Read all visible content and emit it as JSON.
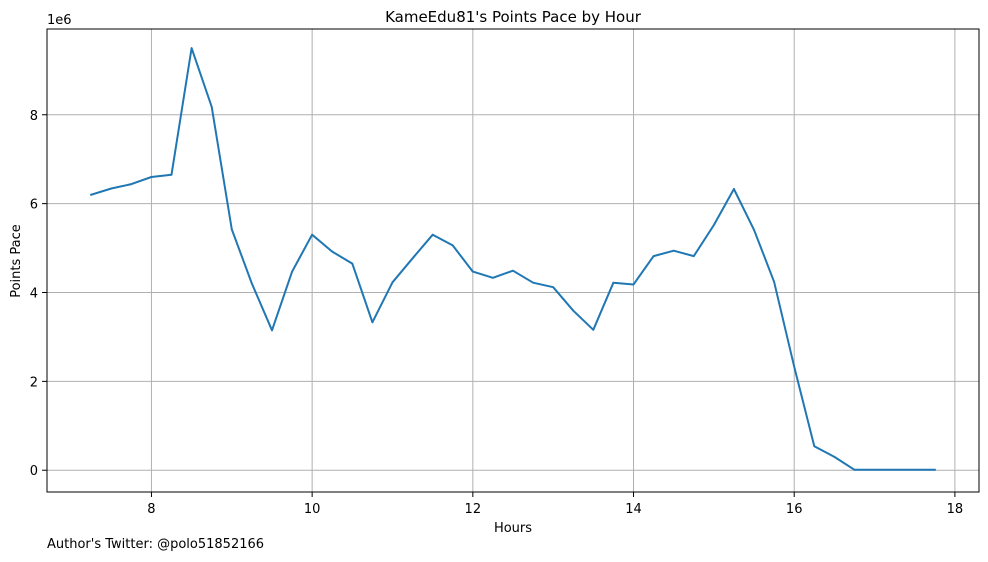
{
  "chart_data": {
    "type": "line",
    "title": "KameEdu81's Points Pace by Hour",
    "xlabel": "Hours",
    "ylabel": "Points Pace",
    "y_offset_label": "1e6",
    "y_scale_factor": 1000000,
    "xlim": [
      6.7,
      18.3
    ],
    "ylim": [
      -490000,
      9930000
    ],
    "xticks": [
      8,
      10,
      12,
      14,
      16,
      18
    ],
    "yticks": [
      0,
      2000000,
      4000000,
      6000000,
      8000000
    ],
    "grid": true,
    "line_color": "#1f77b4",
    "series": [
      {
        "x": [
          7.25,
          7.5,
          7.75,
          8.0,
          8.25,
          8.5,
          8.75,
          9.0,
          9.25,
          9.5,
          9.75,
          10.0,
          10.25,
          10.5,
          10.75,
          11.0,
          11.25,
          11.5,
          11.75,
          12.0,
          12.25,
          12.5,
          12.75,
          13.0,
          13.25,
          13.5,
          13.75,
          14.0,
          14.25,
          14.5,
          14.75,
          15.0,
          15.25,
          15.5,
          15.75,
          16.0,
          16.25,
          16.5,
          16.75,
          17.0,
          17.25,
          17.5,
          17.75
        ],
        "values": [
          6200000,
          6340000,
          6440000,
          6600000,
          6650000,
          9500000,
          8180000,
          5420000,
          4200000,
          3150000,
          4470000,
          5300000,
          4920000,
          4650000,
          3330000,
          4230000,
          4770000,
          5300000,
          5060000,
          4470000,
          4330000,
          4490000,
          4220000,
          4120000,
          3590000,
          3160000,
          4220000,
          4180000,
          4820000,
          4940000,
          4820000,
          5520000,
          6330000,
          5410000,
          4240000,
          2330000,
          540000,
          300000,
          10000,
          10000,
          10000,
          10000,
          10000
        ]
      }
    ]
  },
  "footer": {
    "author_note": "Author's Twitter: @polo51852166"
  }
}
